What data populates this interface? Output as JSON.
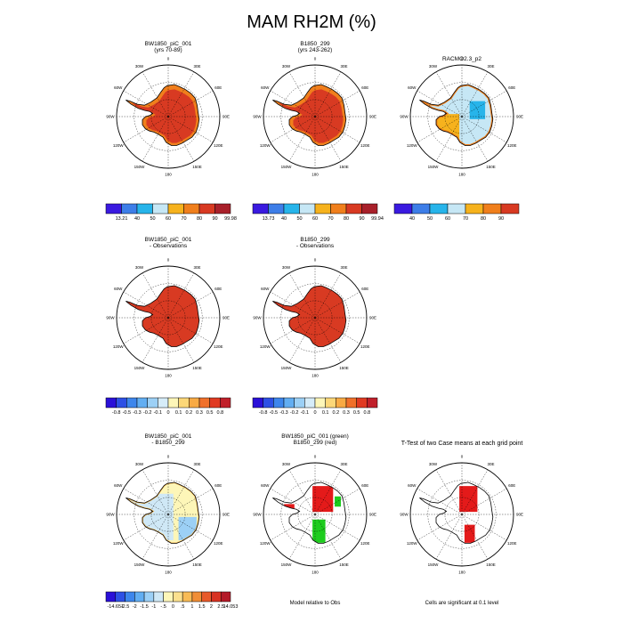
{
  "title": "MAM RH2M (%)",
  "panels": [
    {
      "id": "p1",
      "title": [
        "BW1850_piC_001",
        "(yrs 70-89)"
      ],
      "fill": "humid"
    },
    {
      "id": "p2",
      "title": [
        "B1850_299",
        "(yrs 243-262)"
      ],
      "fill": "humid"
    },
    {
      "id": "p3",
      "title": [
        "RACMO2.3_p2"
      ],
      "fill": "obs"
    },
    {
      "id": "p4",
      "title": [
        "BW1850_piC_001",
        "- Observations"
      ],
      "fill": "diffred"
    },
    {
      "id": "p5",
      "title": [
        "B1850_299",
        "- Observations"
      ],
      "fill": "diffred"
    },
    {
      "id": "p7",
      "title": [
        "BW1850_piC_001",
        "- B1850_299"
      ],
      "fill": "modeldiff"
    },
    {
      "id": "p8",
      "title": [
        "BW1850_piC_001 (green)",
        "B1850_299 (red)"
      ],
      "fill": "sig2"
    },
    {
      "id": "p9",
      "title": [
        "T-Test of two Case means at each grid point"
      ],
      "fill": "ttest"
    }
  ],
  "longitude_labels": [
    "0",
    "30E",
    "60E",
    "90E",
    "120E",
    "150E",
    "180",
    "150W",
    "120W",
    "90W",
    "60W",
    "30W"
  ],
  "colorbars": {
    "cb1": {
      "labels": [
        "13.21",
        "40",
        "50",
        "60",
        "70",
        "80",
        "90",
        "99.98"
      ],
      "colors": [
        "#3a1ae0",
        "#3d7ee8",
        "#27b4ea",
        "#c6e7f5",
        "#f6b21d",
        "#f07f1c",
        "#d83a22",
        "#a8202a"
      ]
    },
    "cb2": {
      "labels": [
        "13.73",
        "40",
        "50",
        "60",
        "70",
        "80",
        "90",
        "99.94"
      ],
      "colors": [
        "#3a1ae0",
        "#3d7ee8",
        "#27b4ea",
        "#c6e7f5",
        "#f6b21d",
        "#f07f1c",
        "#d83a22",
        "#a8202a"
      ]
    },
    "cb3": {
      "labels": [
        "40",
        "50",
        "60",
        "70",
        "80",
        "90"
      ],
      "colors": [
        "#3a1ae0",
        "#3d7ee8",
        "#27b4ea",
        "#c6e7f5",
        "#f6b21d",
        "#f07f1c",
        "#d83a22"
      ]
    },
    "cb4": {
      "labels": [
        "-0.8",
        "-0.5",
        "-0.3",
        "-0.2",
        "-0.1",
        "0",
        "0.1",
        "0.2",
        "0.3",
        "0.5",
        "0.8"
      ],
      "colors": [
        "#2a10d8",
        "#2d50e5",
        "#3d86ec",
        "#62aef2",
        "#9cd0f6",
        "#d6ecf9",
        "#fdf6b8",
        "#fcd778",
        "#f8aa44",
        "#f0702a",
        "#e03a22",
        "#c0202a"
      ]
    },
    "cb5": {
      "labels": [
        "-0.8",
        "-0.5",
        "-0.3",
        "-0.2",
        "-0.1",
        "0",
        "0.1",
        "0.2",
        "0.3",
        "0.5",
        "0.8"
      ],
      "colors": [
        "#2a10d8",
        "#2d50e5",
        "#3d86ec",
        "#62aef2",
        "#9cd0f6",
        "#d6ecf9",
        "#fdf6b8",
        "#fcd778",
        "#f8aa44",
        "#f0702a",
        "#e03a22",
        "#c0202a"
      ]
    },
    "cb7": {
      "labels": [
        "-14.651",
        "-2.5",
        "-2",
        "-1.5",
        "-1",
        "-.5",
        "0",
        ".5",
        "1",
        "1.5",
        "2",
        "2.5",
        "14.053"
      ],
      "colors": [
        "#2a10d8",
        "#2d50e5",
        "#3d86ec",
        "#62aef2",
        "#9cd0f6",
        "#cfe8f6",
        "#fdf6b8",
        "#fbe08e",
        "#f8bb55",
        "#f08e36",
        "#e85a2a",
        "#d83222",
        "#b41a28"
      ]
    }
  },
  "notes": {
    "model_relative": "Model relative to Obs",
    "significance": "Cells are significant at 0.1 level"
  }
}
